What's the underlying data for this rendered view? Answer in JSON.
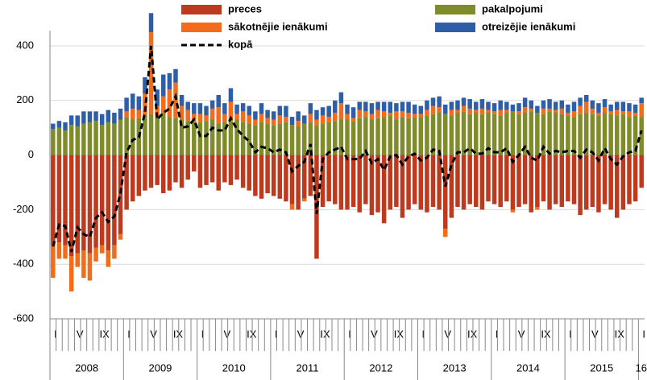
{
  "chart_data": {
    "type": "bar",
    "stacked": true,
    "categories": [
      "I",
      null,
      null,
      null,
      "V",
      null,
      null,
      null,
      "IX",
      null,
      null,
      null,
      "I",
      null,
      null,
      null,
      "V",
      null,
      null,
      null,
      "IX",
      null,
      null,
      null,
      "I",
      null,
      null,
      null,
      "V",
      null,
      null,
      null,
      "IX",
      null,
      null,
      null,
      "I",
      null,
      null,
      null,
      "V",
      null,
      null,
      null,
      "IX",
      null,
      null,
      null,
      "I",
      null,
      null,
      null,
      "V",
      null,
      null,
      null,
      "IX",
      null,
      null,
      null,
      "I",
      null,
      null,
      null,
      "V",
      null,
      null,
      null,
      "IX",
      null,
      null,
      null,
      "I",
      null,
      null,
      null,
      "V",
      null,
      null,
      null,
      "IX",
      null,
      null,
      null,
      "I",
      null,
      null,
      null,
      "V",
      null,
      null,
      null,
      "IX",
      null,
      null,
      null,
      "I"
    ],
    "years": [
      "2008",
      "2009",
      "2010",
      "2011",
      "2012",
      "2013",
      "2014",
      "2015",
      "16"
    ],
    "ylim": [
      -600,
      450
    ],
    "yticks": [
      -600,
      -400,
      -200,
      0,
      200,
      400
    ],
    "grid": true,
    "legend": "top",
    "series": [
      {
        "name": "preces",
        "color": "#be3a1f",
        "values": [
          -330,
          -320,
          -330,
          -370,
          -360,
          -350,
          -360,
          -340,
          -330,
          -350,
          -330,
          -290,
          -200,
          -170,
          -150,
          -130,
          -120,
          -110,
          -140,
          -130,
          -100,
          -120,
          -90,
          -60,
          -120,
          -110,
          -100,
          -130,
          -100,
          -110,
          -90,
          -120,
          -130,
          -150,
          -160,
          -140,
          -150,
          -160,
          -170,
          -180,
          -200,
          -160,
          -150,
          -380,
          -190,
          -170,
          -180,
          -200,
          -200,
          -190,
          -210,
          -180,
          -220,
          -210,
          -250,
          -200,
          -190,
          -230,
          -200,
          -180,
          -200,
          -210,
          -190,
          -200,
          -270,
          -230,
          -190,
          -200,
          -180,
          -190,
          -200,
          -170,
          -180,
          -190,
          -170,
          -200,
          -190,
          -180,
          -210,
          -190,
          -170,
          -200,
          -180,
          -190,
          -170,
          -180,
          -220,
          -200,
          -190,
          -210,
          -180,
          -200,
          -230,
          -200,
          -180,
          -170,
          -120
        ]
      },
      {
        "name": "pakalpojumi",
        "color": "#808c2a",
        "values": [
          95,
          100,
          90,
          110,
          105,
          115,
          120,
          125,
          110,
          120,
          115,
          130,
          140,
          130,
          135,
          145,
          150,
          140,
          155,
          140,
          135,
          130,
          125,
          120,
          120,
          125,
          130,
          115,
          120,
          125,
          130,
          120,
          115,
          110,
          120,
          115,
          110,
          115,
          120,
          110,
          105,
          115,
          120,
          110,
          115,
          120,
          125,
          130,
          130,
          125,
          135,
          140,
          130,
          135,
          140,
          145,
          130,
          140,
          135,
          140,
          140,
          145,
          150,
          155,
          150,
          145,
          155,
          160,
          150,
          155,
          150,
          155,
          150,
          145,
          155,
          160,
          150,
          155,
          160,
          155,
          150,
          160,
          155,
          150,
          145,
          140,
          150,
          155,
          150,
          145,
          155,
          150,
          145,
          150,
          140,
          145,
          140
        ]
      },
      {
        "name": "sākotnējie ienākumi",
        "color": "#f26c1c",
        "values": [
          -120,
          -60,
          -50,
          -130,
          -50,
          -100,
          -100,
          -50,
          -30,
          -60,
          -50,
          -20,
          20,
          40,
          30,
          80,
          300,
          40,
          60,
          100,
          130,
          50,
          40,
          30,
          30,
          20,
          40,
          60,
          30,
          70,
          20,
          40,
          30,
          20,
          30,
          20,
          20,
          30,
          20,
          -20,
          20,
          -10,
          30,
          20,
          30,
          20,
          30,
          60,
          20,
          10,
          30,
          20,
          20,
          30,
          20,
          10,
          30,
          20,
          20,
          10,
          10,
          20,
          30,
          20,
          -30,
          20,
          10,
          20,
          20,
          10,
          20,
          10,
          10,
          20,
          10,
          -10,
          10,
          20,
          10,
          -10,
          20,
          10,
          10,
          20,
          10,
          20,
          30,
          40,
          20,
          10,
          20,
          10,
          20,
          10,
          20,
          10,
          50
        ]
      },
      {
        "name": "otreizējie ienākumi",
        "color": "#2f5ea8",
        "values": [
          20,
          25,
          30,
          35,
          40,
          45,
          40,
          35,
          40,
          45,
          40,
          40,
          50,
          55,
          50,
          60,
          70,
          60,
          80,
          60,
          50,
          40,
          30,
          40,
          40,
          35,
          30,
          45,
          40,
          50,
          35,
          30,
          35,
          30,
          40,
          30,
          30,
          35,
          40,
          30,
          35,
          30,
          40,
          35,
          30,
          40,
          45,
          40,
          35,
          40,
          30,
          35,
          40,
          30,
          35,
          40,
          30,
          35,
          40,
          35,
          30,
          35,
          30,
          40,
          35,
          30,
          35,
          30,
          35,
          30,
          35,
          30,
          30,
          35,
          30,
          25,
          30,
          35,
          30,
          25,
          30,
          35,
          30,
          30,
          30,
          35,
          30,
          25,
          30,
          35,
          30,
          25,
          30,
          35,
          30,
          30,
          20
        ]
      },
      {
        "name": "kopā",
        "type": "line",
        "linestyle": "dashed",
        "color": "#000000",
        "values": [
          -335,
          -255,
          -260,
          -355,
          -265,
          -290,
          -300,
          -230,
          -210,
          -245,
          -225,
          -140,
          10,
          55,
          65,
          155,
          400,
          130,
          155,
          170,
          215,
          100,
          105,
          130,
          70,
          70,
          100,
          90,
          90,
          135,
          95,
          70,
          50,
          10,
          30,
          25,
          10,
          20,
          10,
          -60,
          -40,
          -25,
          40,
          -215,
          -15,
          10,
          20,
          30,
          -15,
          -15,
          -15,
          15,
          -30,
          -15,
          -55,
          -5,
          0,
          -35,
          -5,
          5,
          -20,
          -10,
          20,
          15,
          -115,
          -35,
          10,
          10,
          25,
          5,
          5,
          25,
          10,
          10,
          25,
          -25,
          0,
          30,
          -10,
          -20,
          30,
          5,
          15,
          10,
          15,
          15,
          -10,
          20,
          10,
          -20,
          25,
          -15,
          -35,
          -5,
          10,
          15,
          90
        ]
      }
    ]
  }
}
